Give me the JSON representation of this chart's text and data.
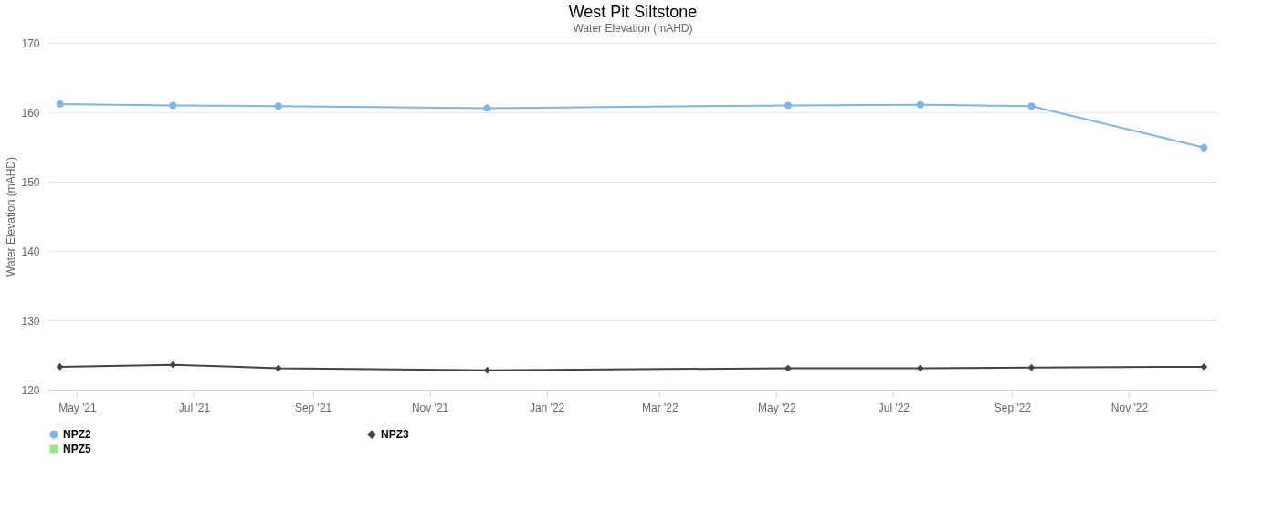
{
  "chart_data": {
    "type": "line",
    "title": "West Pit Siltstone",
    "subtitle": "Water Elevation (mAHD)",
    "ylabel": "Water Elevation (mAHD)",
    "x": [
      "2021-04-22",
      "2021-06-20",
      "2021-08-14",
      "2021-12-01",
      "2022-05-07",
      "2022-07-15",
      "2022-09-11",
      "2022-12-10"
    ],
    "series": [
      {
        "name": "NPZ2",
        "color": "#7cb5ec",
        "marker": "circle",
        "values": [
          161.2,
          161.0,
          160.9,
          160.6,
          161.0,
          161.1,
          160.9,
          154.9
        ]
      },
      {
        "name": "NPZ3",
        "color": "#434348",
        "marker": "diamond",
        "values": [
          123.3,
          123.6,
          123.1,
          122.8,
          123.1,
          123.1,
          123.2,
          123.3
        ]
      },
      {
        "name": "NPZ5",
        "color": "#90ed7d",
        "marker": "square",
        "values": [
          null,
          null,
          null,
          null,
          null,
          null,
          null,
          null
        ]
      }
    ],
    "ylim": [
      120,
      170
    ],
    "yticks": [
      120,
      130,
      140,
      150,
      160,
      170
    ],
    "xlim": [
      "2021-04-16",
      "2022-12-17"
    ],
    "xticks": [
      {
        "value": "2021-05-01",
        "label": "May '21"
      },
      {
        "value": "2021-07-01",
        "label": "Jul '21"
      },
      {
        "value": "2021-09-01",
        "label": "Sep '21"
      },
      {
        "value": "2021-11-01",
        "label": "Nov '21"
      },
      {
        "value": "2022-01-01",
        "label": "Jan '22"
      },
      {
        "value": "2022-03-01",
        "label": "Mar '22"
      },
      {
        "value": "2022-05-01",
        "label": "May '22"
      },
      {
        "value": "2022-07-01",
        "label": "Jul '22"
      },
      {
        "value": "2022-09-01",
        "label": "Sep '22"
      },
      {
        "value": "2022-11-01",
        "label": "Nov '22"
      }
    ],
    "grid": "y",
    "legend": "bottom",
    "line_style": "solid"
  }
}
